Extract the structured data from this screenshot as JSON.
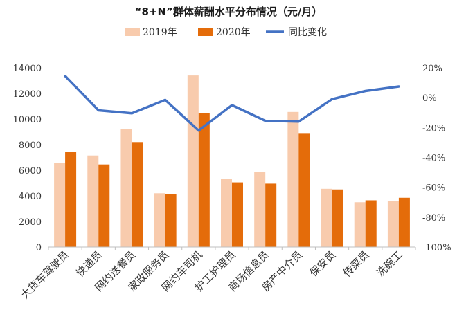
{
  "chart_data": {
    "type": "bar",
    "title": "“8+N”群体薪酬水平分布情况（元/月）",
    "categories": [
      "大货车驾驶员",
      "快递员",
      "网约送餐员",
      "家政服务员",
      "网约车司机",
      "护工护理员",
      "商场信息员",
      "房产中介员",
      "保安员",
      "传菜员",
      "洗碗工"
    ],
    "series": [
      {
        "name": "2019年",
        "type": "bar",
        "axis": "left",
        "color": "#F8CBAD",
        "values": [
          6550,
          7150,
          9200,
          4200,
          13400,
          5300,
          5850,
          10550,
          4550,
          3500,
          3600
        ]
      },
      {
        "name": "2020年",
        "type": "bar",
        "axis": "left",
        "color": "#E46C0A",
        "values": [
          7450,
          6450,
          8200,
          4150,
          10450,
          5050,
          4950,
          8900,
          4500,
          3650,
          3850
        ]
      },
      {
        "name": "同比变化",
        "type": "line",
        "axis": "right",
        "color": "#4472C4",
        "values": [
          14.5,
          -8.5,
          -10.5,
          -1.5,
          -22,
          -5,
          -15.5,
          -16,
          -1,
          4.5,
          7.5
        ]
      }
    ],
    "left_axis": {
      "ylim": [
        0,
        14000
      ],
      "ticks": [
        0,
        2000,
        4000,
        6000,
        8000,
        10000,
        12000,
        14000
      ],
      "tick_labels": [
        "0",
        "2000",
        "4000",
        "6000",
        "8000",
        "10000",
        "12000",
        "14000"
      ]
    },
    "right_axis": {
      "ylim": [
        -100,
        20
      ],
      "ticks": [
        -100,
        -80,
        -60,
        -40,
        -20,
        0,
        20
      ],
      "tick_labels": [
        "-100%",
        "-80%",
        "-60%",
        "-40%",
        "-20%",
        "0%",
        "20%"
      ]
    },
    "grid": false,
    "legend_position": "top"
  }
}
